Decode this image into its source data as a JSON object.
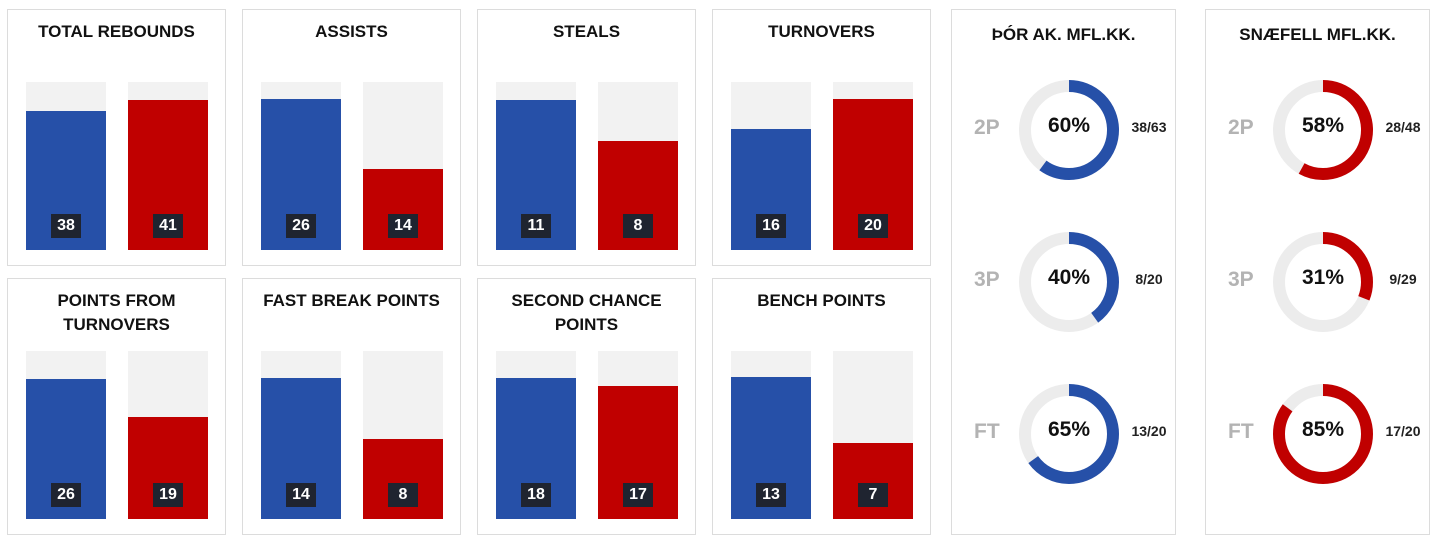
{
  "colors": {
    "team1": "#2650a8",
    "team2": "#c00000",
    "track": "#f2f2f2",
    "ring_track": "#ececec"
  },
  "stats": [
    {
      "title": "TOTAL REBOUNDS",
      "values": [
        38,
        41
      ],
      "max": 46
    },
    {
      "title": "ASSISTS",
      "values": [
        26,
        14
      ],
      "max": 29
    },
    {
      "title": "STEALS",
      "values": [
        11,
        8
      ],
      "max": 12.3
    },
    {
      "title": "TURNOVERS",
      "values": [
        16,
        20
      ],
      "max": 22.3
    },
    {
      "title": "POINTS FROM TURNOVERS",
      "values": [
        26,
        19
      ],
      "max": 31.3
    },
    {
      "title": "FAST BREAK POINTS",
      "values": [
        14,
        8
      ],
      "max": 16.7
    },
    {
      "title": "SECOND CHANCE POINTS",
      "values": [
        18,
        17
      ],
      "max": 21.5
    },
    {
      "title": "BENCH POINTS",
      "values": [
        13,
        7
      ],
      "max": 15.4
    }
  ],
  "shooting": [
    {
      "team": "ÞÓR AK. MFL.KK.",
      "color_key": "team1",
      "rows": [
        {
          "label": "2P",
          "pct": "60%",
          "value": 0.6,
          "frac": "38/63"
        },
        {
          "label": "3P",
          "pct": "40%",
          "value": 0.4,
          "frac": "8/20"
        },
        {
          "label": "FT",
          "pct": "65%",
          "value": 0.65,
          "frac": "13/20"
        }
      ]
    },
    {
      "team": "SNÆFELL MFL.KK.",
      "color_key": "team2",
      "rows": [
        {
          "label": "2P",
          "pct": "58%",
          "value": 0.58,
          "frac": "28/48"
        },
        {
          "label": "3P",
          "pct": "31%",
          "value": 0.31,
          "frac": "9/29"
        },
        {
          "label": "FT",
          "pct": "85%",
          "value": 0.85,
          "frac": "17/20"
        }
      ]
    }
  ],
  "chart_data": [
    {
      "type": "bar",
      "title": "TOTAL REBOUNDS",
      "values": [
        38,
        41
      ]
    },
    {
      "type": "bar",
      "title": "ASSISTS",
      "values": [
        26,
        14
      ]
    },
    {
      "type": "bar",
      "title": "STEALS",
      "values": [
        11,
        8
      ]
    },
    {
      "type": "bar",
      "title": "TURNOVERS",
      "values": [
        16,
        20
      ]
    },
    {
      "type": "bar",
      "title": "POINTS FROM TURNOVERS",
      "values": [
        26,
        19
      ]
    },
    {
      "type": "bar",
      "title": "FAST BREAK POINTS",
      "values": [
        14,
        8
      ]
    },
    {
      "type": "bar",
      "title": "SECOND CHANCE POINTS",
      "values": [
        18,
        17
      ]
    },
    {
      "type": "bar",
      "title": "BENCH POINTS",
      "values": [
        13,
        7
      ]
    },
    {
      "type": "pie",
      "title": "ÞÓR AK. MFL.KK.",
      "categories": [
        "2P",
        "3P",
        "FT"
      ],
      "values": [
        60,
        40,
        65
      ]
    },
    {
      "type": "pie",
      "title": "SNÆFELL MFL.KK.",
      "categories": [
        "2P",
        "3P",
        "FT"
      ],
      "values": [
        58,
        31,
        85
      ]
    }
  ]
}
